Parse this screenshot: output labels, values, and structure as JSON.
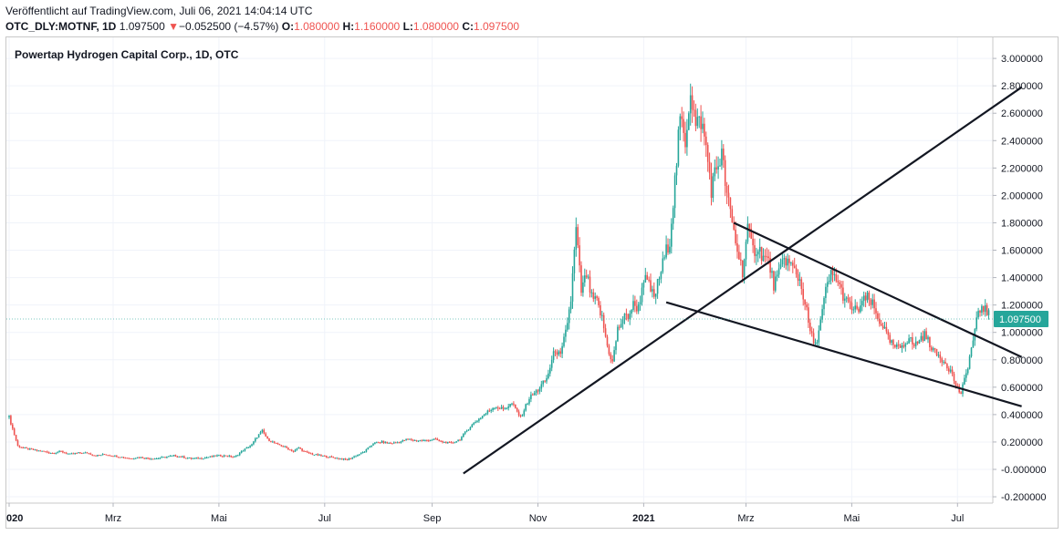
{
  "header": {
    "published": "Veröffentlicht auf TradingView.com, Juli 06, 2021 14:04:14 UTC",
    "symbol": "OTC_DLY:MOTNF, 1D",
    "last": "1.097500",
    "change_arrow": "▼",
    "change": "−0.052500 (−4.57%)",
    "o_label": "O:",
    "o_value": "1.080000",
    "h_label": "H:",
    "h_value": "1.160000",
    "l_label": "L:",
    "l_value": "1.080000",
    "c_label": "C:",
    "c_value": "1.097500"
  },
  "colors": {
    "up": "#26a69a",
    "down": "#ef5350",
    "price_label": "#26a69a",
    "trendline": "#131722"
  },
  "chart_data": {
    "type": "candlestick",
    "title": "Powertap Hydrogen Capital Corp., 1D, OTC",
    "ylim": [
      -0.25,
      3.05
    ],
    "y_ticks": [
      "3.000000",
      "2.800000",
      "2.600000",
      "2.400000",
      "2.200000",
      "2.000000",
      "1.800000",
      "1.600000",
      "1.400000",
      "1.200000",
      "1.000000",
      "0.800000",
      "0.600000",
      "0.400000",
      "0.200000",
      "-0.000000",
      "-0.200000"
    ],
    "y_tick_values": [
      3.0,
      2.8,
      2.6,
      2.4,
      2.2,
      2.0,
      1.8,
      1.6,
      1.4,
      1.2,
      1.0,
      0.8,
      0.6,
      0.4,
      0.2,
      0.0,
      -0.2
    ],
    "x_ticks": [
      {
        "label": "020",
        "bold": true,
        "day": 0
      },
      {
        "label": "Mrz",
        "bold": false,
        "day": 60
      },
      {
        "label": "Mai",
        "bold": false,
        "day": 121
      },
      {
        "label": "Jul",
        "bold": false,
        "day": 182
      },
      {
        "label": "Sep",
        "bold": false,
        "day": 244
      },
      {
        "label": "Nov",
        "bold": false,
        "day": 305
      },
      {
        "label": "2021",
        "bold": true,
        "day": 366
      },
      {
        "label": "Mrz",
        "bold": false,
        "day": 425
      },
      {
        "label": "Mai",
        "bold": false,
        "day": 486
      },
      {
        "label": "Jul",
        "bold": false,
        "day": 547
      }
    ],
    "last_price_label": "1.097500",
    "last_price": 1.0975,
    "series": [
      {
        "day": 0,
        "close": 0.38
      },
      {
        "day": 5,
        "close": 0.17
      },
      {
        "day": 10,
        "close": 0.15
      },
      {
        "day": 15,
        "close": 0.14
      },
      {
        "day": 20,
        "close": 0.13
      },
      {
        "day": 25,
        "close": 0.12
      },
      {
        "day": 30,
        "close": 0.13
      },
      {
        "day": 35,
        "close": 0.11
      },
      {
        "day": 40,
        "close": 0.12
      },
      {
        "day": 45,
        "close": 0.12
      },
      {
        "day": 50,
        "close": 0.1
      },
      {
        "day": 55,
        "close": 0.11
      },
      {
        "day": 60,
        "close": 0.1
      },
      {
        "day": 65,
        "close": 0.09
      },
      {
        "day": 70,
        "close": 0.08
      },
      {
        "day": 75,
        "close": 0.09
      },
      {
        "day": 80,
        "close": 0.08
      },
      {
        "day": 85,
        "close": 0.08
      },
      {
        "day": 90,
        "close": 0.09
      },
      {
        "day": 95,
        "close": 0.1
      },
      {
        "day": 100,
        "close": 0.09
      },
      {
        "day": 105,
        "close": 0.08
      },
      {
        "day": 110,
        "close": 0.08
      },
      {
        "day": 115,
        "close": 0.09
      },
      {
        "day": 120,
        "close": 0.1
      },
      {
        "day": 125,
        "close": 0.1
      },
      {
        "day": 130,
        "close": 0.09
      },
      {
        "day": 135,
        "close": 0.14
      },
      {
        "day": 140,
        "close": 0.18
      },
      {
        "day": 143,
        "close": 0.24
      },
      {
        "day": 146,
        "close": 0.28
      },
      {
        "day": 149,
        "close": 0.22
      },
      {
        "day": 152,
        "close": 0.2
      },
      {
        "day": 155,
        "close": 0.18
      },
      {
        "day": 158,
        "close": 0.17
      },
      {
        "day": 161,
        "close": 0.15
      },
      {
        "day": 164,
        "close": 0.13
      },
      {
        "day": 167,
        "close": 0.16
      },
      {
        "day": 170,
        "close": 0.13
      },
      {
        "day": 175,
        "close": 0.11
      },
      {
        "day": 180,
        "close": 0.1
      },
      {
        "day": 185,
        "close": 0.09
      },
      {
        "day": 190,
        "close": 0.08
      },
      {
        "day": 195,
        "close": 0.07
      },
      {
        "day": 200,
        "close": 0.1
      },
      {
        "day": 205,
        "close": 0.13
      },
      {
        "day": 210,
        "close": 0.19
      },
      {
        "day": 215,
        "close": 0.2
      },
      {
        "day": 220,
        "close": 0.19
      },
      {
        "day": 225,
        "close": 0.2
      },
      {
        "day": 230,
        "close": 0.22
      },
      {
        "day": 235,
        "close": 0.21
      },
      {
        "day": 240,
        "close": 0.21
      },
      {
        "day": 245,
        "close": 0.22
      },
      {
        "day": 250,
        "close": 0.2
      },
      {
        "day": 255,
        "close": 0.19
      },
      {
        "day": 260,
        "close": 0.22
      },
      {
        "day": 265,
        "close": 0.3
      },
      {
        "day": 270,
        "close": 0.36
      },
      {
        "day": 275,
        "close": 0.41
      },
      {
        "day": 280,
        "close": 0.46
      },
      {
        "day": 285,
        "close": 0.44
      },
      {
        "day": 290,
        "close": 0.48
      },
      {
        "day": 295,
        "close": 0.38
      },
      {
        "day": 300,
        "close": 0.52
      },
      {
        "day": 305,
        "close": 0.58
      },
      {
        "day": 310,
        "close": 0.66
      },
      {
        "day": 315,
        "close": 0.88
      },
      {
        "day": 318,
        "close": 0.82
      },
      {
        "day": 321,
        "close": 1.0
      },
      {
        "day": 324,
        "close": 1.24
      },
      {
        "day": 327,
        "close": 1.75
      },
      {
        "day": 330,
        "close": 1.3
      },
      {
        "day": 333,
        "close": 1.42
      },
      {
        "day": 336,
        "close": 1.25
      },
      {
        "day": 339,
        "close": 1.22
      },
      {
        "day": 342,
        "close": 1.1
      },
      {
        "day": 345,
        "close": 0.9
      },
      {
        "day": 348,
        "close": 0.78
      },
      {
        "day": 351,
        "close": 1.02
      },
      {
        "day": 354,
        "close": 1.1
      },
      {
        "day": 357,
        "close": 1.12
      },
      {
        "day": 360,
        "close": 1.2
      },
      {
        "day": 363,
        "close": 1.18
      },
      {
        "day": 366,
        "close": 1.4
      },
      {
        "day": 369,
        "close": 1.34
      },
      {
        "day": 372,
        "close": 1.25
      },
      {
        "day": 375,
        "close": 1.4
      },
      {
        "day": 378,
        "close": 1.55
      },
      {
        "day": 381,
        "close": 1.68
      },
      {
        "day": 384,
        "close": 2.1
      },
      {
        "day": 387,
        "close": 2.55
      },
      {
        "day": 390,
        "close": 2.4
      },
      {
        "day": 393,
        "close": 2.78
      },
      {
        "day": 396,
        "close": 2.5
      },
      {
        "day": 399,
        "close": 2.55
      },
      {
        "day": 402,
        "close": 2.35
      },
      {
        "day": 405,
        "close": 2.05
      },
      {
        "day": 408,
        "close": 2.2
      },
      {
        "day": 411,
        "close": 2.3
      },
      {
        "day": 414,
        "close": 2.0
      },
      {
        "day": 417,
        "close": 1.8
      },
      {
        "day": 420,
        "close": 1.6
      },
      {
        "day": 423,
        "close": 1.45
      },
      {
        "day": 426,
        "close": 1.75
      },
      {
        "day": 429,
        "close": 1.6
      },
      {
        "day": 432,
        "close": 1.62
      },
      {
        "day": 435,
        "close": 1.55
      },
      {
        "day": 438,
        "close": 1.52
      },
      {
        "day": 441,
        "close": 1.35
      },
      {
        "day": 444,
        "close": 1.42
      },
      {
        "day": 447,
        "close": 1.55
      },
      {
        "day": 450,
        "close": 1.5
      },
      {
        "day": 453,
        "close": 1.45
      },
      {
        "day": 456,
        "close": 1.38
      },
      {
        "day": 459,
        "close": 1.22
      },
      {
        "day": 462,
        "close": 1.0
      },
      {
        "day": 465,
        "close": 0.9
      },
      {
        "day": 468,
        "close": 1.08
      },
      {
        "day": 471,
        "close": 1.3
      },
      {
        "day": 474,
        "close": 1.42
      },
      {
        "day": 477,
        "close": 1.4
      },
      {
        "day": 480,
        "close": 1.3
      },
      {
        "day": 483,
        "close": 1.22
      },
      {
        "day": 486,
        "close": 1.18
      },
      {
        "day": 489,
        "close": 1.15
      },
      {
        "day": 492,
        "close": 1.22
      },
      {
        "day": 495,
        "close": 1.25
      },
      {
        "day": 498,
        "close": 1.2
      },
      {
        "day": 501,
        "close": 1.1
      },
      {
        "day": 504,
        "close": 1.05
      },
      {
        "day": 507,
        "close": 0.95
      },
      {
        "day": 510,
        "close": 0.9
      },
      {
        "day": 513,
        "close": 0.88
      },
      {
        "day": 516,
        "close": 0.92
      },
      {
        "day": 519,
        "close": 0.96
      },
      {
        "day": 522,
        "close": 0.9
      },
      {
        "day": 525,
        "close": 0.95
      },
      {
        "day": 528,
        "close": 0.98
      },
      {
        "day": 531,
        "close": 0.92
      },
      {
        "day": 534,
        "close": 0.85
      },
      {
        "day": 537,
        "close": 0.82
      },
      {
        "day": 540,
        "close": 0.78
      },
      {
        "day": 543,
        "close": 0.72
      },
      {
        "day": 546,
        "close": 0.62
      },
      {
        "day": 549,
        "close": 0.55
      },
      {
        "day": 552,
        "close": 0.7
      },
      {
        "day": 555,
        "close": 0.88
      },
      {
        "day": 558,
        "close": 1.08
      },
      {
        "day": 561,
        "close": 1.2
      },
      {
        "day": 564,
        "close": 1.15
      },
      {
        "day": 566,
        "close": 1.0975
      }
    ],
    "trendlines": [
      {
        "name": "rising-support",
        "x1": 262,
        "y1": -0.03,
        "x2": 584,
        "y2": 2.79
      },
      {
        "name": "falling-resistance",
        "x1": 418,
        "y1": 1.8,
        "x2": 584,
        "y2": 0.82
      },
      {
        "name": "falling-support",
        "x1": 379,
        "y1": 1.22,
        "x2": 584,
        "y2": 0.46
      }
    ]
  }
}
